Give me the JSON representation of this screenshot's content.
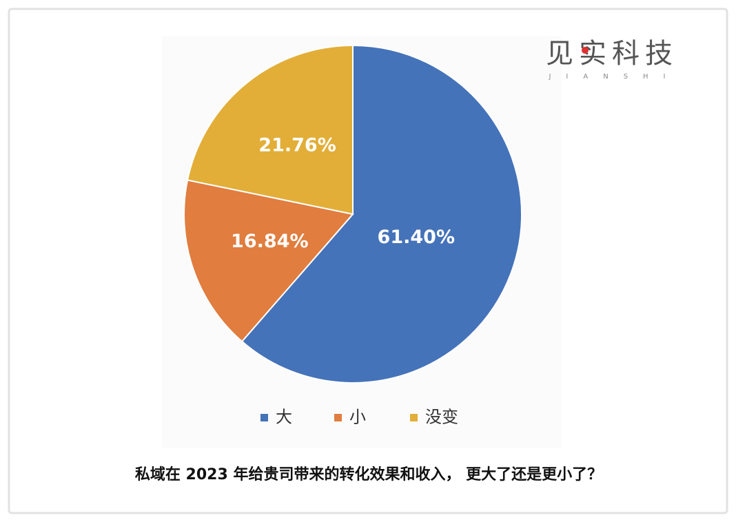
{
  "chart_data": {
    "type": "pie",
    "title": "私域在 2023 年给贵司带来的转化效果和收入， 更大了还是更小了？",
    "categories": [
      "大",
      "小",
      "没变"
    ],
    "values": [
      61.4,
      16.84,
      21.76
    ],
    "value_labels": [
      "61.40%",
      "16.84%",
      "21.76%"
    ],
    "colors": [
      "#4573b9",
      "#e07d3f",
      "#e2ae38"
    ],
    "legend": "bottom"
  },
  "logo": {
    "name": "见实科技",
    "sub": "JIANSHI"
  }
}
